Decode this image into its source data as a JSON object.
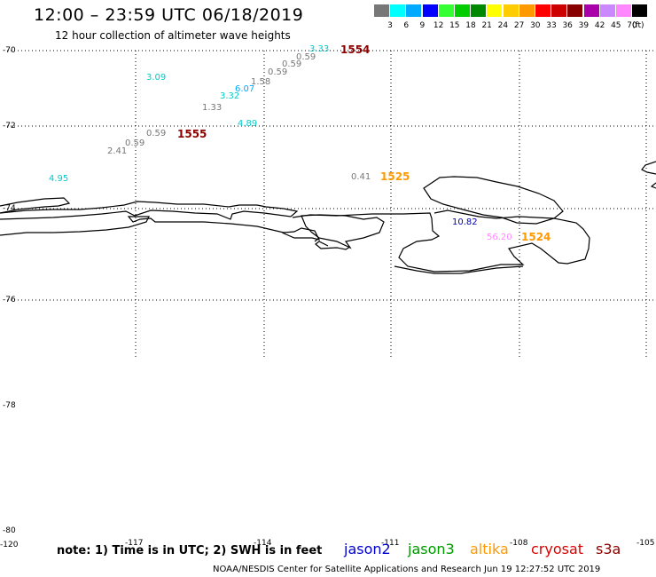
{
  "header": {
    "title": "12:00 – 23:59 UTC 06/18/2019",
    "subtitle": "12 hour collection of altimeter wave heights"
  },
  "legend": {
    "colors": [
      "#777777",
      "#00ffff",
      "#00aaff",
      "#0000ff",
      "#33ff33",
      "#00cc00",
      "#008800",
      "#ffff00",
      "#ffcc00",
      "#ff9900",
      "#ff0000",
      "#cc0000",
      "#880000",
      "#aa00aa",
      "#cc88ff",
      "#ff88ff",
      "#000000"
    ],
    "labels": [
      "3",
      "6",
      "9",
      "12",
      "15",
      "18",
      "21",
      "24",
      "27",
      "30",
      "33",
      "36",
      "39",
      "42",
      "45",
      "70"
    ],
    "unit": "(ft)"
  },
  "axes": {
    "lat_labels": [
      "-70",
      "-72",
      "-74",
      "-76",
      "-78",
      "-80"
    ],
    "lon_labels": [
      "-120",
      "-117",
      "-114",
      "-111",
      "-108",
      "-105"
    ]
  },
  "observations": [
    {
      "value": "3.33",
      "color": "#00cccc"
    },
    {
      "value": "0.59",
      "color": "#777777"
    },
    {
      "value": "0.59",
      "color": "#777777"
    },
    {
      "value": "0.59",
      "color": "#777777"
    },
    {
      "value": "1.58",
      "color": "#777777"
    },
    {
      "value": "6.07",
      "color": "#00aaff"
    },
    {
      "value": "3.32",
      "color": "#00cccc"
    },
    {
      "value": "1.33",
      "color": "#777777"
    },
    {
      "value": "3.09",
      "color": "#00cccc"
    },
    {
      "value": "4.89",
      "color": "#00cccc"
    },
    {
      "value": "0.59",
      "color": "#777777"
    },
    {
      "value": "0.59",
      "color": "#777777"
    },
    {
      "value": "2.41",
      "color": "#777777"
    },
    {
      "value": "4.95",
      "color": "#00cccc"
    },
    {
      "value": "0.41",
      "color": "#777777"
    },
    {
      "value": "10.82",
      "color": "#0000aa"
    },
    {
      "value": "56.20",
      "color": "#ff88ff"
    }
  ],
  "passes": [
    {
      "label": "1554",
      "color": "#880000"
    },
    {
      "label": "1555",
      "color": "#880000"
    },
    {
      "label": "1525",
      "color": "#ff9900"
    },
    {
      "label": "1524",
      "color": "#ff9900"
    }
  ],
  "footer": {
    "note": "note: 1) Time is in UTC; 2) SWH is in feet",
    "satellites": [
      {
        "name": "jason2",
        "color": "#0000cc"
      },
      {
        "name": "jason3",
        "color": "#009900"
      },
      {
        "name": "altika",
        "color": "#ff9900"
      },
      {
        "name": "cryosat",
        "color": "#dd0000"
      },
      {
        "name": "s3a",
        "color": "#880000"
      }
    ],
    "credit": "NOAA/NESDIS Center for Satellite Applications and Research   Jun 19 12:27:52 UTC 2019"
  }
}
